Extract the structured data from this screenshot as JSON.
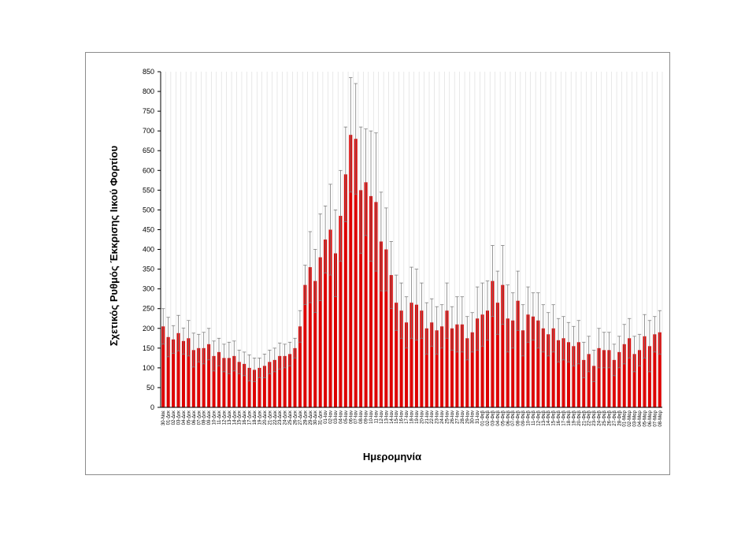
{
  "chart_data": {
    "type": "bar",
    "title": "",
    "xlabel": "Ημερομηνία",
    "ylabel": "Σχετικός Ρυθμός Έκκρισης Ιικού Φορτίου",
    "ylim": [
      0,
      850
    ],
    "yticks": [
      0,
      50,
      100,
      150,
      200,
      250,
      300,
      350,
      400,
      450,
      500,
      550,
      600,
      650,
      700,
      750,
      800,
      850
    ],
    "grid": "vertical lines only",
    "legend": "none",
    "bar_color": "#dd0000",
    "error_bar_color": "#7f7f7f",
    "categories": [
      "30-Νοε",
      "01-Δεκ",
      "02-Δεκ",
      "03-Δεκ",
      "04-Δεκ",
      "05-Δεκ",
      "06-Δεκ",
      "07-Δεκ",
      "08-Δεκ",
      "09-Δεκ",
      "10-Δεκ",
      "11-Δεκ",
      "12-Δεκ",
      "13-Δεκ",
      "14-Δεκ",
      "15-Δεκ",
      "16-Δεκ",
      "17-Δεκ",
      "18-Δεκ",
      "19-Δεκ",
      "20-Δεκ",
      "21-Δεκ",
      "22-Δεκ",
      "23-Δεκ",
      "24-Δεκ",
      "25-Δεκ",
      "26-Δεκ",
      "27-Δεκ",
      "28-Δεκ",
      "29-Δεκ",
      "30-Δεκ",
      "31-Δεκ",
      "01-Ιαν",
      "02-Ιαν",
      "03-Ιαν",
      "04-Ιαν",
      "05-Ιαν",
      "06-Ιαν",
      "07-Ιαν",
      "08-Ιαν",
      "09-Ιαν",
      "10-Ιαν",
      "11-Ιαν",
      "12-Ιαν",
      "13-Ιαν",
      "14-Ιαν",
      "15-Ιαν",
      "16-Ιαν",
      "17-Ιαν",
      "18-Ιαν",
      "19-Ιαν",
      "20-Ιαν",
      "21-Ιαν",
      "22-Ιαν",
      "23-Ιαν",
      "24-Ιαν",
      "25-Ιαν",
      "26-Ιαν",
      "27-Ιαν",
      "28-Ιαν",
      "29-Ιαν",
      "30-Ιαν",
      "31-Ιαν",
      "01-Φεβ",
      "02-Φεβ",
      "03-Φεβ",
      "04-Φεβ",
      "05-Φεβ",
      "06-Φεβ",
      "07-Φεβ",
      "08-Φεβ",
      "09-Φεβ",
      "10-Φεβ",
      "11-Φεβ",
      "12-Φεβ",
      "13-Φεβ",
      "14-Φεβ",
      "15-Φεβ",
      "16-Φεβ",
      "17-Φεβ",
      "18-Φεβ",
      "19-Φεβ",
      "20-Φεβ",
      "21-Φεβ",
      "22-Φεβ",
      "23-Φεβ",
      "24-Φεβ",
      "25-Φεβ",
      "26-Φεβ",
      "27-Φεβ",
      "28-Φεβ",
      "01-Μαρ",
      "02-Μαρ",
      "03-Μαρ",
      "04-Μαρ",
      "05-Μαρ",
      "06-Μαρ",
      "07-Μαρ",
      "08-Μαρ"
    ],
    "series": [
      {
        "values": [
          205,
          178,
          172,
          188,
          168,
          175,
          145,
          150,
          150,
          160,
          130,
          140,
          125,
          125,
          130,
          115,
          110,
          100,
          95,
          100,
          105,
          115,
          120,
          130,
          130,
          135,
          150,
          205,
          310,
          355,
          320,
          380,
          425,
          450,
          390,
          485,
          590,
          690,
          680,
          550,
          570,
          535,
          520,
          420,
          400,
          335,
          265,
          245,
          215,
          265,
          260,
          245,
          200,
          215,
          195,
          205,
          245,
          200,
          210,
          210,
          175,
          190,
          225,
          235,
          245,
          320,
          265,
          310,
          225,
          220,
          270,
          195,
          235,
          230,
          220,
          200,
          185,
          200,
          170,
          175,
          165,
          155,
          165,
          120,
          135,
          105,
          150,
          145,
          145,
          120,
          140,
          160,
          175,
          135,
          145,
          180,
          155,
          185,
          190
        ],
        "error": [
          45,
          50,
          35,
          45,
          33,
          45,
          43,
          35,
          40,
          40,
          38,
          35,
          35,
          40,
          38,
          30,
          30,
          33,
          30,
          25,
          30,
          30,
          30,
          33,
          30,
          30,
          25,
          40,
          50,
          90,
          80,
          110,
          85,
          115,
          110,
          115,
          120,
          145,
          140,
          160,
          135,
          165,
          175,
          125,
          105,
          85,
          70,
          70,
          65,
          90,
          90,
          70,
          65,
          60,
          60,
          55,
          70,
          55,
          70,
          70,
          55,
          50,
          80,
          80,
          75,
          90,
          80,
          100,
          85,
          70,
          75,
          65,
          70,
          60,
          70,
          60,
          55,
          60,
          55,
          55,
          50,
          50,
          55,
          45,
          45,
          40,
          50,
          45,
          45,
          40,
          40,
          50,
          50,
          45,
          40,
          55,
          65,
          45,
          55
        ]
      }
    ]
  }
}
